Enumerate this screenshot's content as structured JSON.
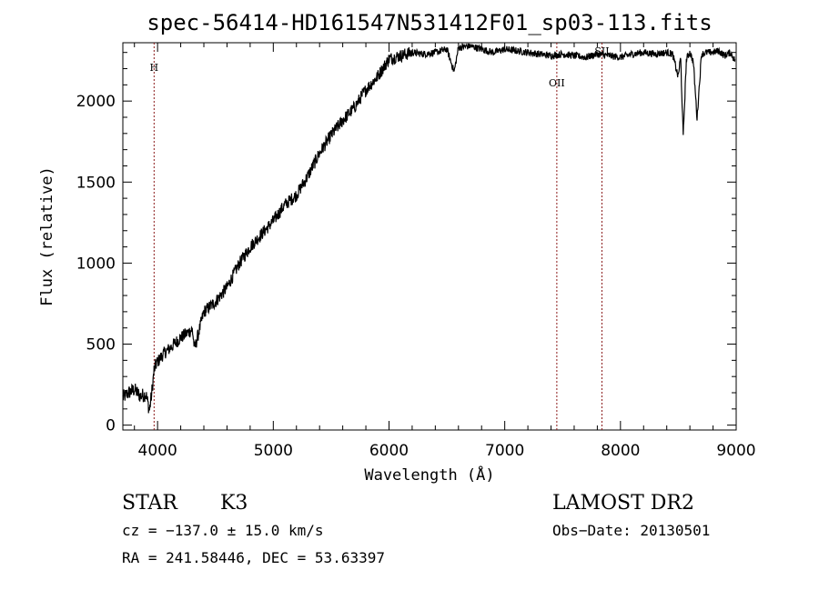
{
  "chart_data": {
    "type": "line",
    "title": "spec-56414-HD161547N531412F01_sp03-113.fits",
    "xlabel": "Wavelength (Å)",
    "ylabel": "Flux (relative)",
    "xlim": [
      3700,
      9000
    ],
    "ylim": [
      -30,
      2360
    ],
    "x_ticks": [
      4000,
      5000,
      6000,
      7000,
      8000,
      9000
    ],
    "y_ticks": [
      0,
      500,
      1000,
      1500,
      2000
    ],
    "grid": false,
    "series": [
      {
        "x": [
          3700,
          3750,
          3800,
          3850,
          3900,
          3930,
          3950,
          3970,
          3990,
          4010,
          4050,
          4100,
          4200,
          4300,
          4320,
          4400,
          4500,
          4600,
          4700,
          4800,
          4900,
          5000,
          5100,
          5200,
          5300,
          5400,
          5500,
          5600,
          5700,
          5800,
          5900,
          6000,
          6100,
          6200,
          6300,
          6400,
          6500,
          6563,
          6600,
          6700,
          6800,
          6900,
          7000,
          7100,
          7200,
          7300,
          7400,
          7500,
          7600,
          7700,
          7800,
          7900,
          8000,
          8100,
          8200,
          8300,
          8400,
          8450,
          8498,
          8520,
          8542,
          8570,
          8600,
          8630,
          8662,
          8700,
          8750,
          8800,
          8850,
          8900,
          8950,
          8990
        ],
        "y": [
          170,
          200,
          220,
          180,
          190,
          90,
          200,
          340,
          380,
          400,
          440,
          470,
          540,
          590,
          470,
          700,
          760,
          850,
          990,
          1100,
          1180,
          1260,
          1360,
          1420,
          1540,
          1680,
          1790,
          1880,
          1960,
          2070,
          2150,
          2260,
          2280,
          2300,
          2290,
          2300,
          2320,
          2180,
          2330,
          2340,
          2320,
          2300,
          2320,
          2310,
          2300,
          2290,
          2280,
          2290,
          2280,
          2270,
          2290,
          2280,
          2270,
          2290,
          2300,
          2290,
          2300,
          2290,
          2150,
          2270,
          1780,
          2260,
          2300,
          2240,
          1890,
          2290,
          2300,
          2300,
          2310,
          2280,
          2300,
          2250
        ]
      }
    ],
    "lines": [
      {
        "label": "H",
        "x": 3970
      },
      {
        "label": "OII",
        "x": 7450
      },
      {
        "label": "SII",
        "x": 7840
      }
    ]
  },
  "info": {
    "class": "STAR",
    "subclass": "K3",
    "survey": "LAMOST DR2",
    "cz": "cz = −137.0 ± 15.0 km/s",
    "obs_date": "Obs−Date: 20130501",
    "coords": "RA = 241.58446, DEC =  53.63397"
  }
}
